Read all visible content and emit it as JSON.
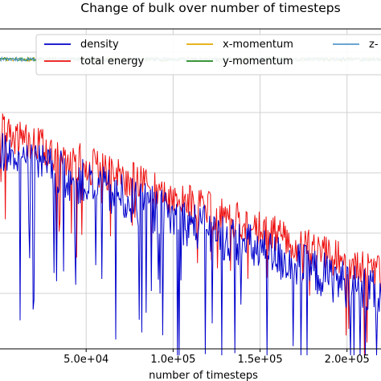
{
  "chart_data": {
    "type": "line",
    "title": "Change of bulk over number of timesteps",
    "xlabel": "number of timesteps",
    "ylabel": "",
    "xlim": [
      0,
      220000
    ],
    "x_ticks": [
      {
        "value": 50000,
        "label": "5.0e+04"
      },
      {
        "value": 100000,
        "label": "1.0e+05"
      },
      {
        "value": 150000,
        "label": "1.5e+05"
      },
      {
        "value": 200000,
        "label": "2.0e+05"
      }
    ],
    "grid": true,
    "legend_placement": "top",
    "series": [
      {
        "name": "density",
        "color": "#0000cc",
        "trend": "noisy, decreasing",
        "start_level": 0.62,
        "end_level": 0.16
      },
      {
        "name": "total energy",
        "color": "#ee1111",
        "trend": "noisy, decreasing",
        "start_level": 0.68,
        "end_level": 0.23
      },
      {
        "name": "x-momentum",
        "color": "#e5a900",
        "trend": "flat noisy",
        "level": 0.905
      },
      {
        "name": "y-momentum",
        "color": "#228822",
        "trend": "flat noisy",
        "level": 0.905
      },
      {
        "name": "z-",
        "color": "#5599cc",
        "trend": "flat noisy",
        "level": 0.905
      }
    ]
  }
}
